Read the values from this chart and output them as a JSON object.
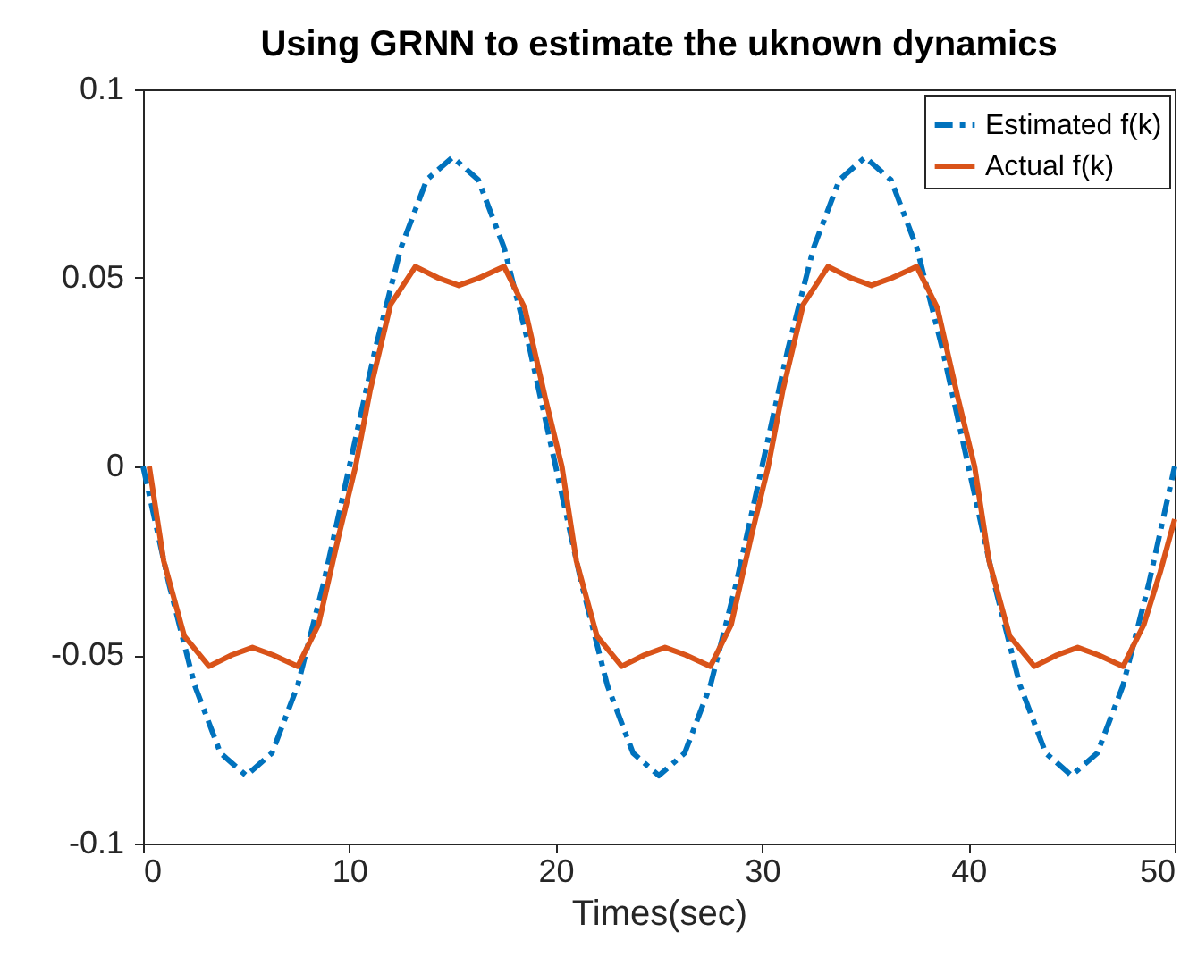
{
  "chart_data": {
    "type": "line",
    "title": "Using GRNN to estimate the uknown dynamics",
    "xlabel": "Times(sec)",
    "xlim": [
      0,
      50
    ],
    "xticks": [
      0,
      10,
      20,
      30,
      40,
      50
    ],
    "ylim": [
      -0.1,
      0.1
    ],
    "yticks": [
      {
        "value": -0.1,
        "label": "-0.1"
      },
      {
        "value": -0.05,
        "label": "-0.05"
      },
      {
        "value": 0,
        "label": "0"
      },
      {
        "value": 0.05,
        "label": "0.05"
      },
      {
        "value": 0.1,
        "label": "0.1"
      }
    ],
    "legend": "top right",
    "grid": false,
    "series": [
      {
        "name": "Estimated f(k)",
        "color": "#0072bd",
        "line_style": "dashed",
        "x": [
          0,
          1.25,
          2.5,
          3.75,
          5,
          6.25,
          7.5,
          8.75,
          10,
          11.25,
          12.5,
          13.75,
          15,
          16.25,
          17.5,
          18.75,
          20,
          21.25,
          22.5,
          23.75,
          25,
          26.25,
          27.5,
          28.75,
          30,
          31.25,
          32.5,
          33.75,
          35,
          36.25,
          37.5,
          38.75,
          40,
          41.25,
          42.5,
          43.75,
          45,
          46.25,
          47.5,
          48.75,
          50
        ],
        "values": [
          0,
          -0.031,
          -0.058,
          -0.076,
          -0.082,
          -0.076,
          -0.058,
          -0.031,
          0,
          0.031,
          0.058,
          0.076,
          0.082,
          0.076,
          0.058,
          0.031,
          0,
          -0.031,
          -0.058,
          -0.076,
          -0.082,
          -0.076,
          -0.058,
          -0.031,
          0,
          0.031,
          0.058,
          0.076,
          0.082,
          0.076,
          0.058,
          0.031,
          0,
          -0.031,
          -0.058,
          -0.076,
          -0.082,
          -0.076,
          -0.058,
          -0.031,
          0
        ]
      },
      {
        "name": "Actual f(k)",
        "color": "#d95319",
        "line_style": "solid",
        "x": [
          0.3,
          1,
          2,
          3.2,
          4.3,
          5.3,
          6.3,
          7.5,
          8.5,
          9.5,
          10.3,
          11,
          12,
          13.2,
          14.3,
          15.3,
          16.3,
          17.5,
          18.5,
          19.5,
          20.3,
          21,
          22,
          23.2,
          24.3,
          25.3,
          26.3,
          27.5,
          28.5,
          29.5,
          30.3,
          31,
          32,
          33.2,
          34.3,
          35.3,
          36.3,
          37.5,
          38.5,
          39.5,
          40.3,
          41,
          42,
          43.2,
          44.3,
          45.3,
          46.3,
          47.5,
          48.5,
          49.3,
          50
        ],
        "values": [
          0,
          -0.025,
          -0.045,
          -0.053,
          -0.05,
          -0.048,
          -0.05,
          -0.053,
          -0.042,
          -0.018,
          0,
          0.02,
          0.043,
          0.053,
          0.05,
          0.048,
          0.05,
          0.053,
          0.042,
          0.018,
          0,
          -0.025,
          -0.045,
          -0.053,
          -0.05,
          -0.048,
          -0.05,
          -0.053,
          -0.042,
          -0.018,
          0,
          0.02,
          0.043,
          0.053,
          0.05,
          0.048,
          0.05,
          0.053,
          0.042,
          0.018,
          0,
          -0.025,
          -0.045,
          -0.053,
          -0.05,
          -0.048,
          -0.05,
          -0.053,
          -0.042,
          -0.028,
          -0.014
        ]
      }
    ]
  }
}
